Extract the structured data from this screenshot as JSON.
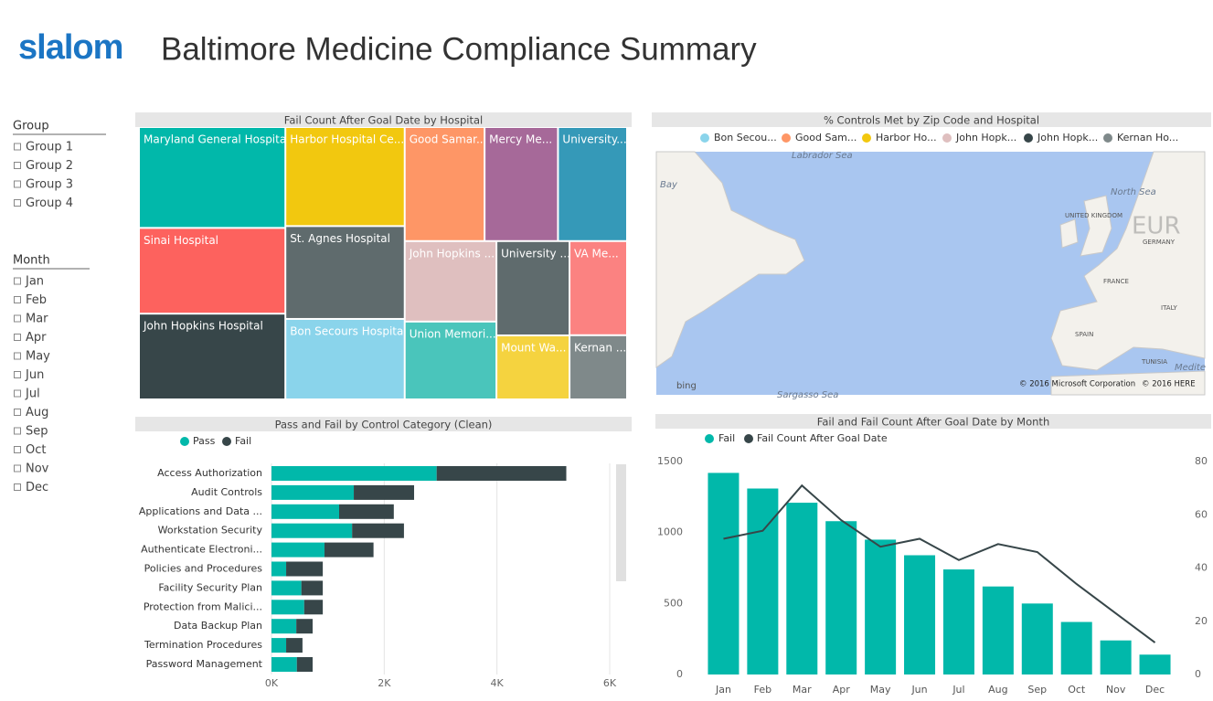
{
  "header": {
    "logo": "slalom",
    "title": "Baltimore Medicine Compliance Summary"
  },
  "slicers": [
    {
      "title": "Group",
      "items": [
        "Group 1",
        "Group 2",
        "Group 3",
        "Group 4"
      ]
    },
    {
      "title": "Month",
      "items": [
        "Jan",
        "Feb",
        "Mar",
        "Apr",
        "May",
        "Jun",
        "Jul",
        "Aug",
        "Sep",
        "Oct",
        "Nov",
        "Dec"
      ]
    }
  ],
  "chart_data": [
    {
      "type": "treemap",
      "title": "Fail Count After Goal Date by Hospital",
      "categories": [
        "Maryland General Hospital",
        "Sinai Hospital",
        "John Hopkins Hospital",
        "Harbor Hospital Ce...",
        "St. Agnes Hospital",
        "Bon Secours Hospital",
        "Good Samar...",
        "Mercy Me...",
        "University...",
        "John Hopkins ...",
        "Union Memori...",
        "University ...",
        "Mount Wa...",
        "VA Me...",
        "Kernan ..."
      ],
      "values": [
        60,
        51,
        51,
        48,
        45,
        39,
        37,
        34,
        32,
        30,
        29,
        28,
        19,
        22,
        15
      ],
      "colors": [
        "#01b8aa",
        "#fd625e",
        "#374649",
        "#f2c80f",
        "#5f6b6d",
        "#8ad4eb",
        "#fe9666",
        "#a66999",
        "#3599b8",
        "#dfbfbf",
        "#4ac5bb",
        "#5f6b6d",
        "#f5d33f",
        "#fb8281",
        "#7f898a"
      ]
    },
    {
      "type": "map",
      "title": "% Controls Met by Zip Code and Hospital",
      "series": [
        {
          "name": "Bon Secou...",
          "color": "#8ad4eb"
        },
        {
          "name": "Good Sam...",
          "color": "#fe9666"
        },
        {
          "name": "Harbor Ho...",
          "color": "#f2c80f"
        },
        {
          "name": "John Hopk...",
          "color": "#dfbfbf"
        },
        {
          "name": "John Hopk...",
          "color": "#374649"
        },
        {
          "name": "Kernan Ho...",
          "color": "#7f898a"
        }
      ],
      "labels": [
        "Labrador Sea",
        "Bay",
        "North Sea",
        "UNITED KINGDOM",
        "GERMANY",
        "FRANCE",
        "ITALY",
        "SPAIN",
        "TUNISIA",
        "Medite",
        "Sargasso Sea",
        "EUR"
      ],
      "provider": "bing",
      "attribution": [
        "© 2016 Microsoft Corporation",
        "© 2016 HERE"
      ]
    },
    {
      "type": "bar",
      "orientation": "horizontal",
      "stacked": true,
      "title": "Pass and Fail by Control Category (Clean)",
      "categories": [
        "Access Authorization",
        "Audit Controls",
        "Applications and Data ...",
        "Workstation Security",
        "Authenticate Electroni...",
        "Policies and Procedures",
        "Facility Security Plan",
        "Protection from Malici...",
        "Data Backup Plan",
        "Termination Procedures",
        "Password Management"
      ],
      "series": [
        {
          "name": "Pass",
          "color": "#01b8aa",
          "values": [
            2930,
            1460,
            1200,
            1430,
            940,
            260,
            530,
            580,
            440,
            260,
            450
          ]
        },
        {
          "name": "Fail",
          "color": "#374649",
          "values": [
            2300,
            1070,
            970,
            920,
            870,
            650,
            380,
            330,
            290,
            290,
            280
          ]
        }
      ],
      "xlim": [
        0,
        6000
      ],
      "xticks": [
        {
          "value": 0,
          "label": "0K"
        },
        {
          "value": 2000,
          "label": "2K"
        },
        {
          "value": 4000,
          "label": "4K"
        },
        {
          "value": 6000,
          "label": "6K"
        }
      ],
      "grid": true
    },
    {
      "type": "combo",
      "title": "Fail and Fail Count After Goal Date by Month",
      "categories": [
        "Jan",
        "Feb",
        "Mar",
        "Apr",
        "May",
        "Jun",
        "Jul",
        "Aug",
        "Sep",
        "Oct",
        "Nov",
        "Dec"
      ],
      "series": [
        {
          "name": "Fail",
          "type": "bar",
          "color": "#01b8aa",
          "values": [
            1420,
            1310,
            1210,
            1080,
            950,
            840,
            740,
            620,
            500,
            370,
            240,
            140
          ]
        },
        {
          "name": "Fail Count After Goal Date",
          "type": "line",
          "axis": "y2",
          "color": "#374649",
          "values": [
            51,
            54,
            71,
            58,
            48,
            51,
            43,
            49,
            46,
            34,
            23,
            12
          ]
        }
      ],
      "ylim": [
        0,
        1500
      ],
      "yticks": [
        0,
        500,
        1000,
        1500
      ],
      "y2lim": [
        0,
        80
      ],
      "y2ticks": [
        0,
        20,
        40,
        60,
        80
      ]
    }
  ]
}
